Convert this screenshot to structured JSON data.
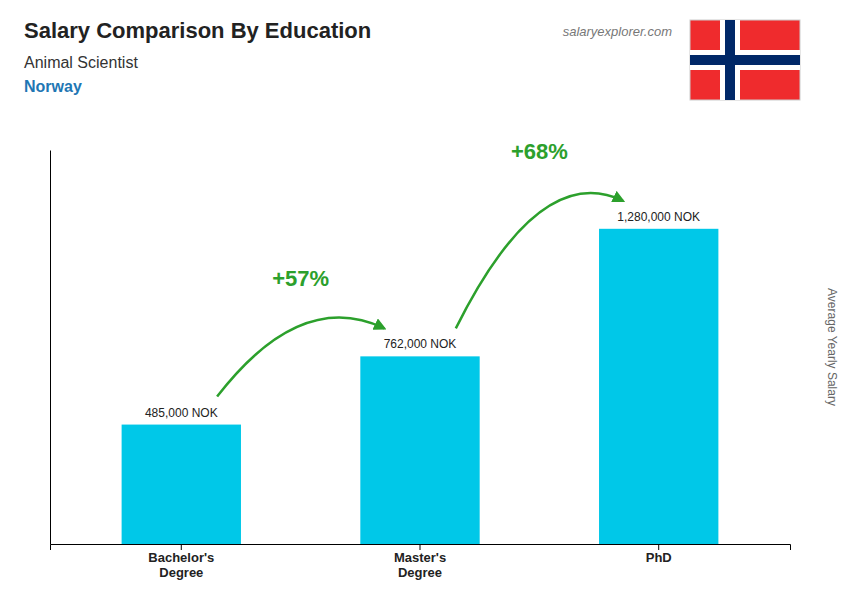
{
  "chart_data": {
    "type": "bar",
    "title": "Salary Comparison By Education",
    "subtitle": [
      "Animal Scientist",
      "Norway"
    ],
    "source": "salaryexplorer.com",
    "ylabel": "Average Yearly Salary",
    "categories": [
      "Bachelor's\nDegree",
      "Master's\nDegree",
      "PhD"
    ],
    "values": [
      485000,
      762000,
      1280000
    ],
    "value_labels": [
      "485,000 NOK",
      "762,000 NOK",
      "1,280,000 NOK"
    ],
    "data_labels": true,
    "color": "#00c8e8",
    "annotations": [
      "+57%",
      "+68%"
    ],
    "ylim": [
      0,
      1600000
    ],
    "grid": false,
    "tick_labels": "x"
  }
}
